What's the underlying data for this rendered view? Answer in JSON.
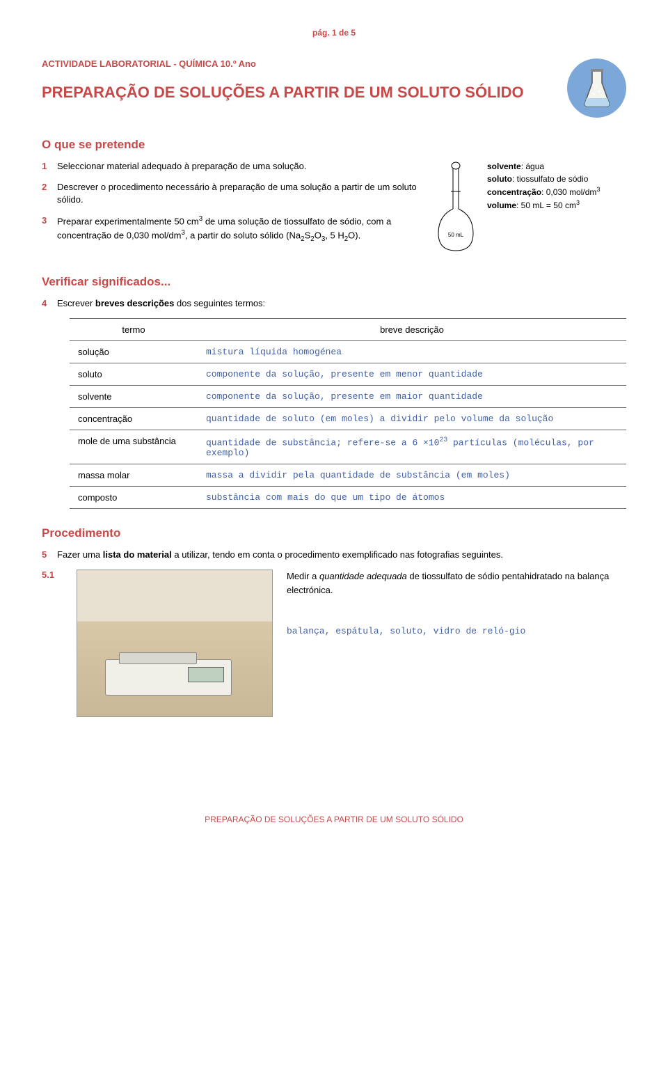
{
  "page_indicator": "pág. 1 de 5",
  "activity_header": "ACTIVIDADE LABORATORIAL - QUÍMICA 10.º Ano",
  "main_title": "PREPARAÇÃO DE SOLUÇÕES A PARTIR DE UM SOLUTO SÓLIDO",
  "sections": {
    "objective_title": "O que se pretende",
    "verify_title": "Verificar significados...",
    "procedure_title": "Procedimento"
  },
  "objectives": [
    {
      "n": "1",
      "html": "Seleccionar material adequado à preparação de uma solução."
    },
    {
      "n": "2",
      "html": "Descrever o procedimento necessário à preparação de uma solução a partir de um soluto sólido."
    },
    {
      "n": "3",
      "html": "Preparar experimentalmente 50 cm<sup>3</sup> de uma solução de tiossulfato de sódio, com a concentração de 0,030 mol/dm<sup>3</sup>, a partir do soluto sólido (Na<sub>2</sub>S<sub>2</sub>O<sub>3</sub>, 5 H<sub>2</sub>O)."
    }
  ],
  "flask_info": {
    "solvente_label": "solvente",
    "solvente_val": ": água",
    "soluto_label": "soluto",
    "soluto_val": ": tiossulfato de sódio",
    "conc_label": "concentração",
    "conc_val": ": 0,030 mol/dm",
    "conc_sup": "3",
    "vol_label": "volume",
    "vol_val": ": 50 mL = 50 cm",
    "vol_sup": "3",
    "flask_label": "50 mL"
  },
  "verify_intro": {
    "n": "4",
    "text": "Escrever <b>breves descrições</b> dos seguintes termos:"
  },
  "terms_table": {
    "headers": [
      "termo",
      "breve descrição"
    ],
    "rows": [
      {
        "term": "solução",
        "desc": "mistura líquida homogénea"
      },
      {
        "term": "soluto",
        "desc": "componente da solução, presente em menor quantidade"
      },
      {
        "term": "solvente",
        "desc": "componente da solução, presente em maior quantidade"
      },
      {
        "term": "concentração",
        "desc": "quantidade de soluto (em moles) a dividir pelo volume da solução"
      },
      {
        "term": "mole de uma substância",
        "desc": "quantidade de substância; refere-se a 6 ×10<sup>23</sup> partículas (moléculas, por exemplo)"
      },
      {
        "term": "massa molar",
        "desc": "massa a dividir pela quantidade de substância (em moles)"
      },
      {
        "term": "composto",
        "desc": "substância com mais do que um tipo de átomos"
      }
    ]
  },
  "procedure": {
    "intro": {
      "n": "5",
      "html": "Fazer uma <b>lista do material</b> a utilizar, tendo em conta o procedimento exemplificado nas fotografias seguintes."
    },
    "step": {
      "n": "5.1",
      "text": "Medir a <i>quantidade adequada</i> de tiossulfato de sódio pentahidratado na balança electrónica.",
      "materials": "balança, espátula, soluto, vidro de reló-gio"
    }
  },
  "footer": "PREPARAÇÃO DE SOLUÇÕES A PARTIR DE UM SOLUTO SÓLIDO",
  "colors": {
    "accent": "#c84848",
    "mono": "#4060a8",
    "circle": "#7ba8d8"
  }
}
